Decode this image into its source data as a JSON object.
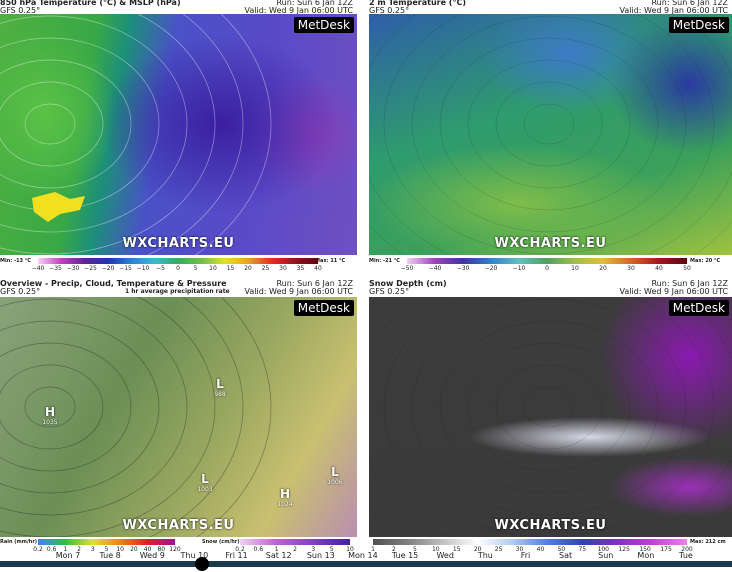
{
  "panels": [
    {
      "title": "850 hPa Temperature (°C) & MSLP (hPa)",
      "model": "GFS 0.25°",
      "run": "Run: Sun 6 Jan 12Z",
      "valid": "Valid: Wed 9 Jan 06:00 UTC",
      "brand": "MetDesk",
      "watermark": "WXCHARTS.EU",
      "min": "Min: -13 °C",
      "max": "Max: 11 °C",
      "scale": {
        "ticks": [
          "−40",
          "−35",
          "−30",
          "−25",
          "−20",
          "−15",
          "−10",
          "−5",
          "0",
          "5",
          "10",
          "15",
          "20",
          "25",
          "30",
          "35",
          "40"
        ]
      }
    },
    {
      "title": "2 m Temperature (°C)",
      "model": "GFS 0.25°",
      "run": "Run: Sun 6 Jan 12Z",
      "valid": "Valid: Wed 9 Jan 06:00 UTC",
      "brand": "MetDesk",
      "watermark": "WXCHARTS.EU",
      "min": "Min: -21 °C",
      "max": "Max: 20 °C",
      "scale": {
        "ticks": [
          "−50",
          "−40",
          "−30",
          "−20",
          "−10",
          "0",
          "10",
          "20",
          "30",
          "40",
          "50"
        ]
      }
    },
    {
      "title": "Overview - Precip, Cloud, Temperature & Pressure",
      "model": "GFS 0.25°",
      "note": "1 hr average precipitation rate",
      "run": "Run: Sun 6 Jan 12Z",
      "valid": "Valid: Wed 9 Jan 06:00 UTC",
      "brand": "MetDesk",
      "watermark": "WXCHARTS.EU",
      "rain": {
        "label": "Rain (mm/hr)",
        "ticks": [
          "0.2",
          "0.6",
          "1",
          "2",
          "3",
          "5",
          "10",
          "20",
          "40",
          "80",
          "120"
        ]
      },
      "snow": {
        "label": "Snow (cm/hr)",
        "ticks": [
          "0.2",
          "0.6",
          "1",
          "2",
          "3",
          "5",
          "10"
        ]
      },
      "centers": [
        {
          "kind": "H",
          "value": "1035"
        },
        {
          "kind": "L",
          "value": "988"
        },
        {
          "kind": "L",
          "value": "1003"
        },
        {
          "kind": "H",
          "value": "1024"
        },
        {
          "kind": "L",
          "value": "1006"
        }
      ]
    },
    {
      "title": "Snow Depth (cm)",
      "model": "GFS 0.25°",
      "run": "Run: Sun 6 Jan 12Z",
      "valid": "Valid: Wed 9 Jan 06:00 UTC",
      "brand": "MetDesk",
      "watermark": "WXCHARTS.EU",
      "max": "Max: 212 cm",
      "scale": {
        "ticks": [
          "1",
          "2",
          "5",
          "10",
          "15",
          "20",
          "25",
          "30",
          "40",
          "50",
          "75",
          "100",
          "125",
          "150",
          "175",
          "200"
        ]
      }
    }
  ],
  "timeline": [
    "Mon 7",
    "Tue 8",
    "Wed 9",
    "Thu 10",
    "Fri 11",
    "Sat 12",
    "Sun 13",
    "Mon 14",
    "Tue 15",
    "Wed",
    "Thu",
    "Fri",
    "Sat",
    "Sun",
    "Mon",
    "Tue"
  ]
}
